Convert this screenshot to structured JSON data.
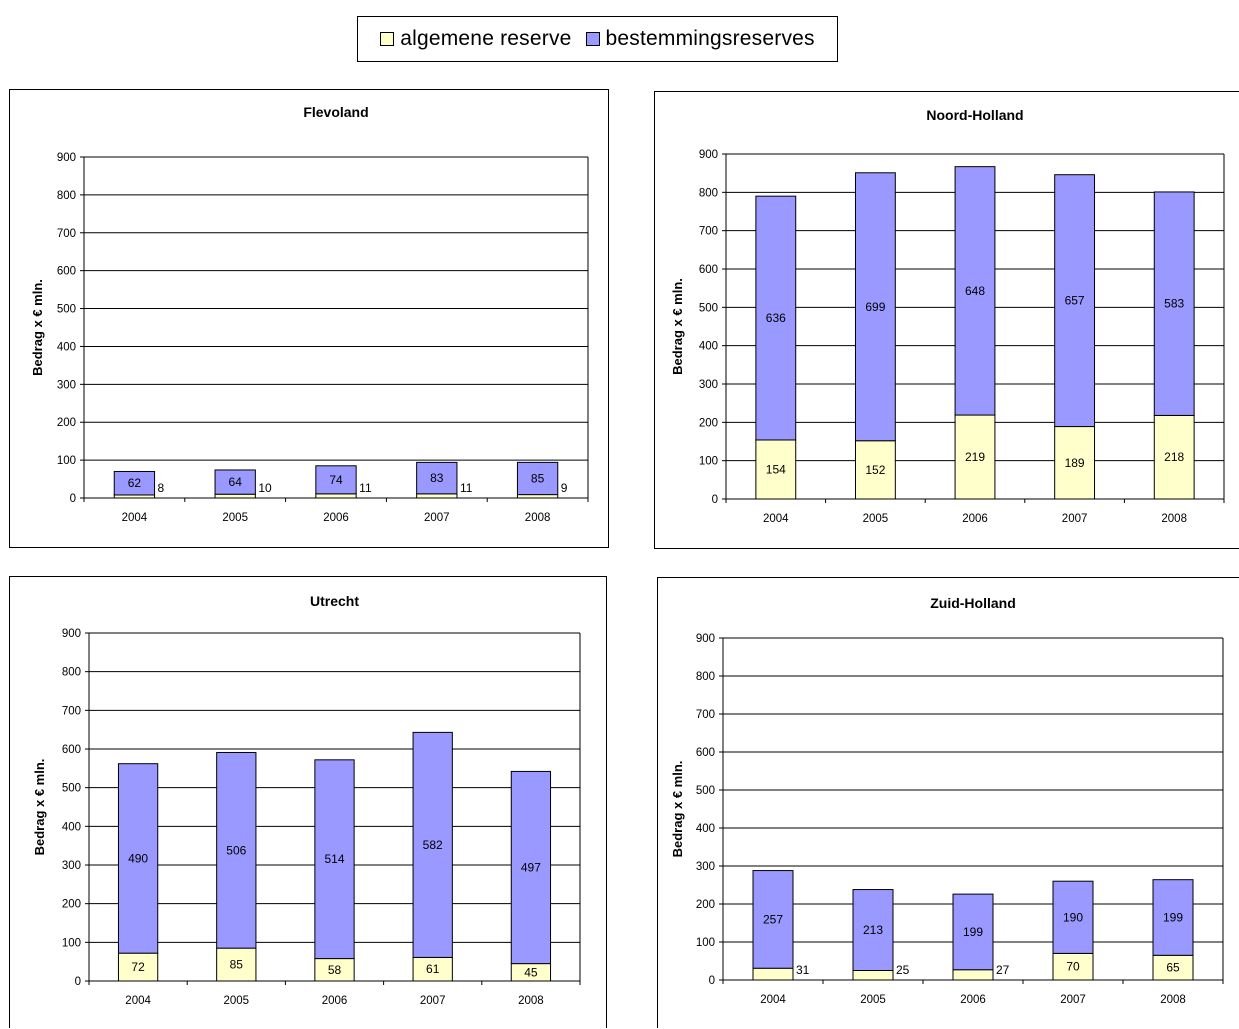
{
  "legend": {
    "algemene_label": "algemene reserve",
    "bestemmings_label": "bestemmingsreserves"
  },
  "colors": {
    "algemene": "#FFFFCC",
    "bestemmings": "#9999FF",
    "grid": "#000000"
  },
  "chart_data": [
    {
      "type": "bar",
      "stacked": true,
      "title": "Flevoland",
      "ylabel": "Bedrag x € mln.",
      "xlabel": "",
      "categories": [
        "2004",
        "2005",
        "2006",
        "2007",
        "2008"
      ],
      "ylim": [
        0,
        900
      ],
      "yticks": [
        0,
        100,
        200,
        300,
        400,
        500,
        600,
        700,
        800,
        900
      ],
      "grid": true,
      "series": [
        {
          "name": "algemene reserve",
          "values": [
            8,
            10,
            11,
            11,
            9
          ],
          "labels": [
            "8",
            "10",
            "11",
            "11",
            "9"
          ]
        },
        {
          "name": "bestemmingsreserves",
          "values": [
            62,
            64,
            74,
            83,
            85
          ],
          "labels": [
            "62",
            "64",
            "74",
            "83",
            "85"
          ]
        }
      ]
    },
    {
      "type": "bar",
      "stacked": true,
      "title": "Noord-Holland",
      "ylabel": "Bedrag x € mln.",
      "xlabel": "",
      "categories": [
        "2004",
        "2005",
        "2006",
        "2007",
        "2008"
      ],
      "ylim": [
        0,
        900
      ],
      "yticks": [
        0,
        100,
        200,
        300,
        400,
        500,
        600,
        700,
        800,
        900
      ],
      "grid": true,
      "series": [
        {
          "name": "algemene reserve",
          "values": [
            154,
            152,
            219,
            189,
            218
          ],
          "labels": [
            "154",
            "152",
            "219",
            "189",
            "218"
          ]
        },
        {
          "name": "bestemmingsreserves",
          "values": [
            636,
            699,
            648,
            657,
            583
          ],
          "labels": [
            "636",
            "699",
            "648",
            "657",
            "583"
          ]
        }
      ]
    },
    {
      "type": "bar",
      "stacked": true,
      "title": "Utrecht",
      "ylabel": "Bedrag x € mln.",
      "xlabel": "",
      "categories": [
        "2004",
        "2005",
        "2006",
        "2007",
        "2008"
      ],
      "ylim": [
        0,
        900
      ],
      "yticks": [
        0,
        100,
        200,
        300,
        400,
        500,
        600,
        700,
        800,
        900
      ],
      "grid": true,
      "series": [
        {
          "name": "algemene reserve",
          "values": [
            72,
            85,
            58,
            61,
            45
          ],
          "labels": [
            "72",
            "85",
            "58",
            "61",
            "45"
          ]
        },
        {
          "name": "bestemmingsreserves",
          "values": [
            490,
            506,
            514,
            582,
            497
          ],
          "labels": [
            "490",
            "506",
            "514",
            "582",
            "497"
          ]
        }
      ]
    },
    {
      "type": "bar",
      "stacked": true,
      "title": "Zuid-Holland",
      "ylabel": "Bedrag x € mln.",
      "xlabel": "",
      "categories": [
        "2004",
        "2005",
        "2006",
        "2007",
        "2008"
      ],
      "ylim": [
        0,
        900
      ],
      "yticks": [
        0,
        100,
        200,
        300,
        400,
        500,
        600,
        700,
        800,
        900
      ],
      "grid": true,
      "series": [
        {
          "name": "algemene reserve",
          "values": [
            31,
            25,
            27,
            70,
            65
          ],
          "labels": [
            "31",
            "25",
            "27",
            "70",
            "65"
          ]
        },
        {
          "name": "bestemmingsreserves",
          "values": [
            257,
            213,
            199,
            190,
            199
          ],
          "labels": [
            "257",
            "213",
            "199",
            "190",
            "199"
          ]
        }
      ]
    }
  ]
}
